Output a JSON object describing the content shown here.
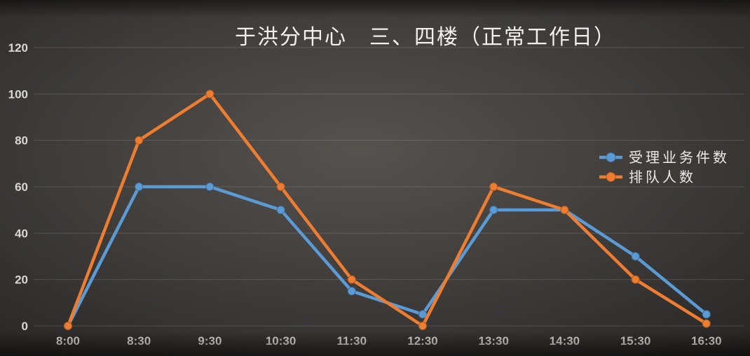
{
  "chart_data": {
    "type": "line",
    "title": "于洪分中心　三、四楼（正常工作日）",
    "categories": [
      "8:00",
      "8:30",
      "9:30",
      "10:30",
      "11:30",
      "12:30",
      "13:30",
      "14:30",
      "15:30",
      "16:30"
    ],
    "series": [
      {
        "name": "受理业务件数",
        "color": "#5B9BD5",
        "marker_stroke": "#41719C",
        "values": [
          0,
          60,
          60,
          50,
          15,
          5,
          50,
          50,
          30,
          5
        ]
      },
      {
        "name": "排队人数",
        "color": "#ED7D31",
        "marker_stroke": "#AE5A21",
        "values": [
          0,
          80,
          100,
          60,
          20,
          0,
          60,
          50,
          20,
          1
        ]
      }
    ],
    "ylim": [
      0,
      120
    ],
    "ytick_step": 20,
    "yticks": [
      0,
      20,
      40,
      60,
      80,
      100,
      120
    ],
    "grid": true,
    "legend_position": "right-middle"
  },
  "colors": {
    "background_center": "#56524f",
    "background_mid": "#403d3b",
    "background_edge": "#232221",
    "gridline": "rgba(255,255,255,0.14)",
    "axis_text": "#d9d7d4",
    "title_text": "#f2f0ee",
    "legend_text": "#eceae7"
  }
}
